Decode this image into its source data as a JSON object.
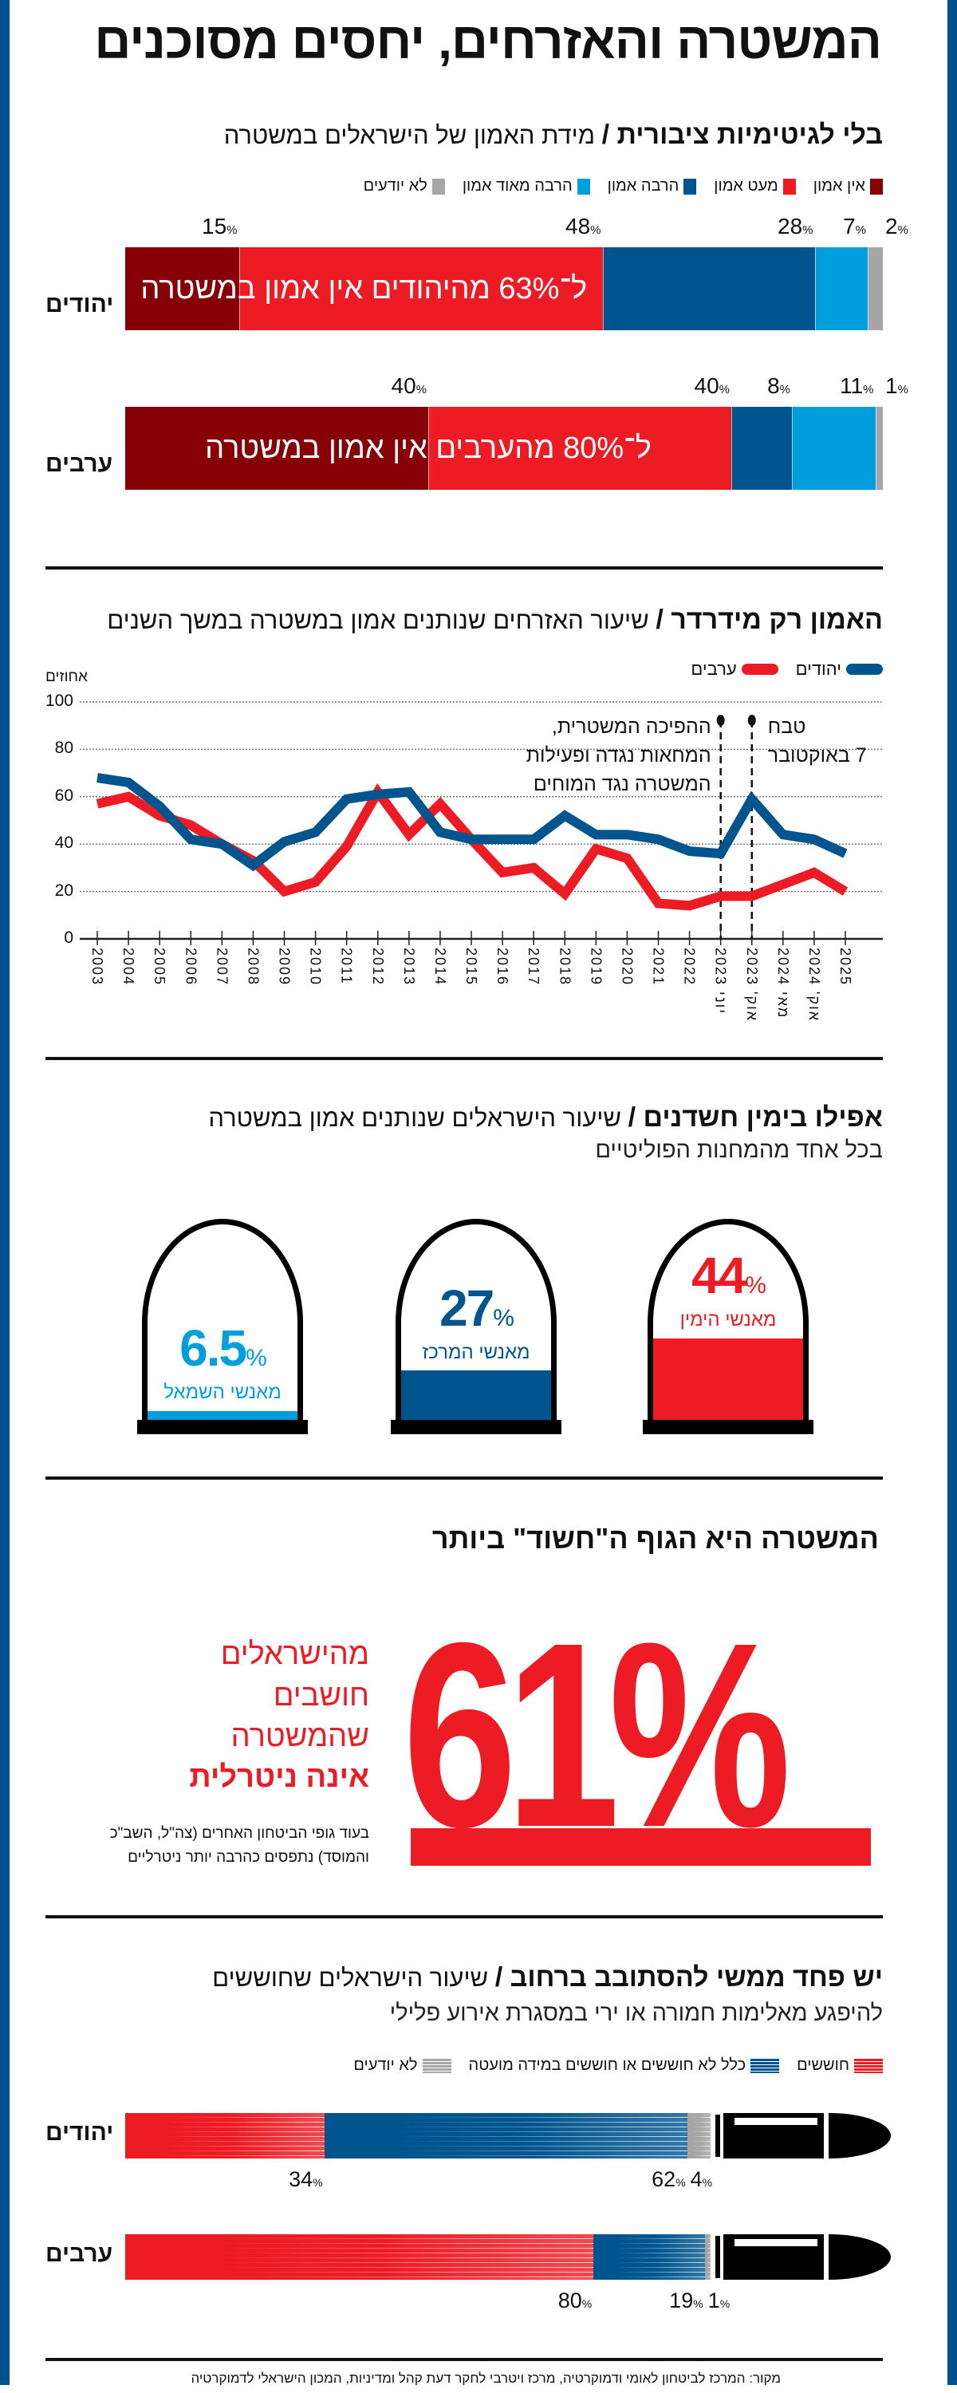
{
  "title": "המשטרה והאזרחים, יחסים מסוכנים",
  "colors": {
    "frame": "#00508c",
    "dark_red": "#870007",
    "red": "#ed1c24",
    "dark_blue": "#00558f",
    "light_blue": "#009fdc",
    "grey": "#a6a6a6"
  },
  "trust": {
    "heading_bold": "בלי לגיטימיות ציבורית /",
    "heading_rest": " מידת האמון של הישראלים במשטרה"
  },
  "trend": {
    "heading_bold": "האמון רק מידרדר /",
    "heading_rest": " שיעור האזרחים שנותנים אמון במשטרה במשך השנים"
  },
  "politics": {
    "heading_bold": "אפילו בימין חשדנים /",
    "heading_rest": " שיעור הישראלים שנותנים אמון במשטרה",
    "subline": "בכל אחד מהמחנות הפוליטיים",
    "items": [
      {
        "value": 44,
        "value_text": "44",
        "label": "מאנשי הימין",
        "color": "#ed1c24"
      },
      {
        "value": 27,
        "value_text": "27",
        "label": "מאנשי המרכז",
        "color": "#00558f"
      },
      {
        "value": 6.5,
        "value_text": "6.5",
        "label": "מאנשי השמאל",
        "color": "#009fdc"
      }
    ]
  },
  "neutral": {
    "heading": "המשטרה היא הגוף ה\"חשוד\" ביותר",
    "big_number": "61%",
    "value": 61,
    "lines": [
      "מהישראלים",
      "חושבים",
      "שהמשטרה"
    ],
    "line_bold": "אינה ניטרלית",
    "note_lines": [
      "בעוד גופי הביטחון האחרים (צה\"ל, השב\"כ",
      "והמוסד) נתפסים כהרבה יותר ניטרליים"
    ]
  },
  "fear": {
    "heading_bold": "יש פחד ממשי להסתובב ברחוב /",
    "heading_rest": " שיעור הישראלים שחוששים",
    "subline": "להיפגע מאלימות חמורה או ירי במסגרת אירוע פלילי"
  },
  "source": "מקור: המרכז לביטחון לאומי ודמוקרטיה, מרכז ויטרבי לחקר דעת קהל ומדיניות, המכון הישראלי לדמוקרטיה",
  "chart_data": [
    {
      "type": "bar",
      "stacked": true,
      "orientation": "horizontal",
      "unit": "%",
      "legend": [
        "אין אמון",
        "מעט אמון",
        "הרבה אמון",
        "הרבה מאוד אמון",
        "לא יודעים"
      ],
      "legend_colors": [
        "#870007",
        "#ed1c24",
        "#00558f",
        "#009fdc",
        "#a6a6a6"
      ],
      "categories": [
        "יהודים",
        "ערבים"
      ],
      "series": [
        {
          "name": "אין אמון",
          "values": [
            15,
            40
          ]
        },
        {
          "name": "מעט אמון",
          "values": [
            48,
            40
          ]
        },
        {
          "name": "הרבה אמון",
          "values": [
            28,
            8
          ]
        },
        {
          "name": "הרבה מאוד אמון",
          "values": [
            7,
            11
          ]
        },
        {
          "name": "לא יודעים",
          "values": [
            2,
            1
          ]
        }
      ],
      "annotations": [
        "ל־63% מהיהודים אין אמון במשטרה",
        "ל־80% מהערבים אין אמון במשטרה"
      ]
    },
    {
      "type": "line",
      "ylabel": "אחוזים",
      "ylim": [
        0,
        100
      ],
      "yticks": [
        0,
        20,
        40,
        60,
        80,
        100
      ],
      "grid": true,
      "legend_position": "top-right",
      "categories": [
        "2003",
        "2004",
        "2005",
        "2006",
        "2007",
        "2008",
        "2009",
        "2010",
        "2011",
        "2012",
        "2013",
        "2014",
        "2015",
        "2016",
        "2017",
        "2018",
        "2019",
        "2020",
        "2021",
        "2022",
        "יוני 2023",
        "אוק' 2023",
        "מאי 2024",
        "אוק' 2024",
        "2025"
      ],
      "series": [
        {
          "name": "יהודים",
          "color": "#00558f",
          "values": [
            68,
            66,
            56,
            42,
            40,
            31,
            41,
            45,
            59,
            61,
            62,
            45,
            42,
            42,
            42,
            52,
            44,
            44,
            42,
            37,
            36,
            59,
            44,
            42,
            36
          ]
        },
        {
          "name": "ערבים",
          "color": "#ed1c24",
          "values": [
            57,
            60,
            52,
            48,
            40,
            33,
            20,
            24,
            39,
            62,
            44,
            57,
            42,
            28,
            30,
            19,
            38,
            34,
            15,
            14,
            18,
            18,
            23,
            28,
            20
          ]
        }
      ],
      "events": [
        {
          "at": "יוני 2023",
          "lines": [
            "ההפיכה המשטרית,",
            "המחאות נגדה ופעילות",
            "המשטרה נגד המוחים"
          ]
        },
        {
          "at": "אוק' 2023",
          "lines": [
            "טבח",
            "7 באוקטובר"
          ]
        }
      ]
    },
    {
      "type": "bar",
      "stacked": true,
      "orientation": "horizontal",
      "unit": "%",
      "legend": [
        "חוששים",
        "כלל לא חוששים או חוששים במידה מועטה",
        "לא יודעים"
      ],
      "legend_colors": [
        "#ed1c24",
        "#00558f",
        "#a6a6a6"
      ],
      "categories": [
        "יהודים",
        "ערבים"
      ],
      "series": [
        {
          "name": "חוששים",
          "values": [
            34,
            80
          ]
        },
        {
          "name": "כלל לא חוששים או חוששים במידה מועטה",
          "values": [
            62,
            19
          ]
        },
        {
          "name": "לא יודעים",
          "values": [
            4,
            1
          ]
        }
      ]
    }
  ]
}
